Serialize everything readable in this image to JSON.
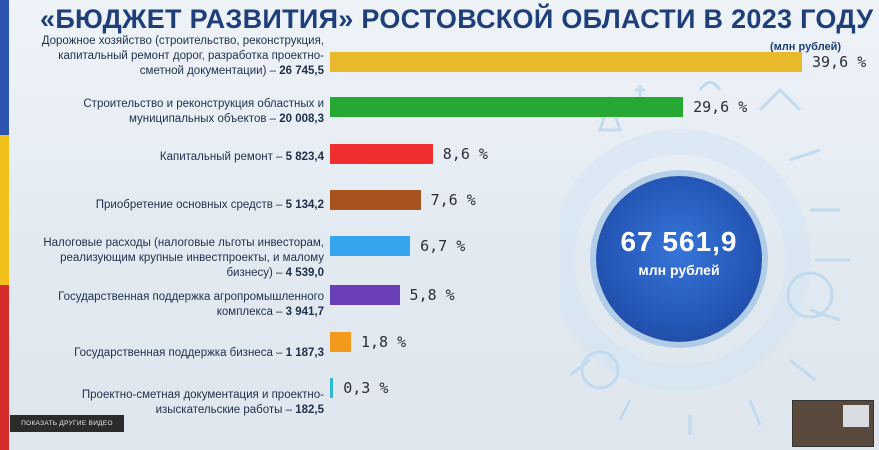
{
  "title": "«БЮДЖЕТ РАЗВИТИЯ» РОСТОВСКОЙ ОБЛАСТИ В 2023 ГОДУ",
  "unit_label": "(млн рублей)",
  "total": {
    "value": "67 561,9",
    "unit": "млн рублей"
  },
  "overlay": {
    "more_videos": "ПОКАЗАТЬ ДРУГИЕ ВИДЕО"
  },
  "chart_data": {
    "type": "bar",
    "orientation": "horizontal",
    "title": "«БЮДЖЕТ РАЗВИТИЯ» РОСТОВСКОЙ ОБЛАСТИ В 2023 ГОДУ",
    "unit": "(млн рублей)",
    "categories": [
      "Дорожное хозяйство (строительство, реконструкция, капитальный ремонт дорог, разработка проектно-сметной документации) –",
      "Строительство и реконструкция областных и муниципальных объектов –",
      "Капитальный ремонт –",
      "Приобретение основных средств –",
      "Налоговые расходы (налоговые льготы инвесторам, реализующим крупные инвестпроекты, и малому бизнесу) –",
      "Государственная поддержка агропромышленного комплекса –",
      "Государственная поддержка бизнеса –",
      "Проектно-сметная документация и проектно-изыскательские работы –"
    ],
    "amounts": [
      "26 745,5",
      "20 008,3",
      "5 823,4",
      "5 134,2",
      "4 539,0",
      "3 941,7",
      "1 187,3",
      "182,5"
    ],
    "values": [
      26745.5,
      20008.3,
      5823.4,
      5134.2,
      4539.0,
      3941.7,
      1187.3,
      182.5
    ],
    "percent_labels": [
      "39,6 %",
      "29,6 %",
      "8,6 %",
      "7,6 %",
      "6,7 %",
      "5,8 %",
      "1,8 %",
      "0,3 %"
    ],
    "colors": [
      "#e8b92a",
      "#27a832",
      "#ef2f2f",
      "#a8521d",
      "#36a4ee",
      "#6b3fb7",
      "#f39a1c",
      "#2fb6d4"
    ],
    "total": 67561.9
  }
}
